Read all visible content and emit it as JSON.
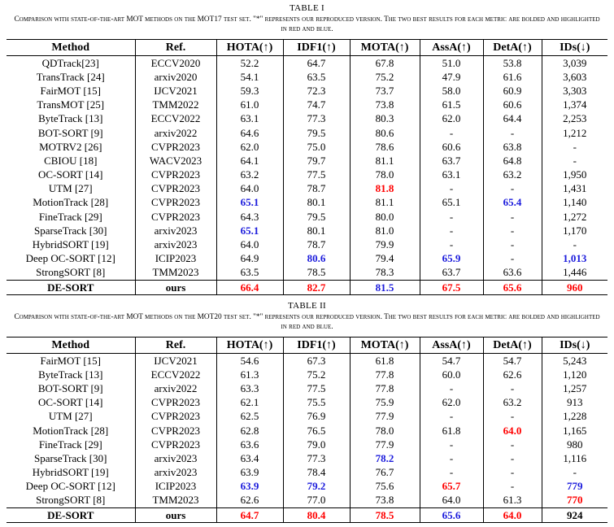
{
  "headers": [
    "Method",
    "Ref.",
    "HOTA(↑)",
    "IDF1(↑)",
    "MOTA(↑)",
    "AssA(↑)",
    "DetA(↑)",
    "IDs(↓)"
  ],
  "tables": [
    {
      "title": "TABLE I",
      "caption": "Comparison with state-of-the-art MOT methods on the MOT17 test set. \"*\" represents our reproduced version. The two best results for each metric are bolded and highlighted in red and blue.",
      "rows": [
        {
          "cells": [
            "QDTrack[23]",
            "ECCV2020",
            "52.2",
            "64.7",
            "67.8",
            "51.0",
            "53.8",
            "3,039"
          ],
          "hl": {}
        },
        {
          "cells": [
            "TransTrack [24]",
            "arxiv2020",
            "54.1",
            "63.5",
            "75.2",
            "47.9",
            "61.6",
            "3,603"
          ],
          "hl": {}
        },
        {
          "cells": [
            "FairMOT [15]",
            "IJCV2021",
            "59.3",
            "72.3",
            "73.7",
            "58.0",
            "60.9",
            "3,303"
          ],
          "hl": {}
        },
        {
          "cells": [
            "TransMOT [25]",
            "TMM2022",
            "61.0",
            "74.7",
            "73.8",
            "61.5",
            "60.6",
            "1,374"
          ],
          "hl": {}
        },
        {
          "cells": [
            "ByteTrack [13]",
            "ECCV2022",
            "63.1",
            "77.3",
            "80.3",
            "62.0",
            "64.4",
            "2,253"
          ],
          "hl": {}
        },
        {
          "cells": [
            "BOT-SORT [9]",
            "arxiv2022",
            "64.6",
            "79.5",
            "80.6",
            "-",
            "-",
            "1,212"
          ],
          "hl": {}
        },
        {
          "cells": [
            "MOTRV2 [26]",
            "CVPR2023",
            "62.0",
            "75.0",
            "78.6",
            "60.6",
            "63.8",
            "-"
          ],
          "hl": {}
        },
        {
          "cells": [
            "CBIOU [18]",
            "WACV2023",
            "64.1",
            "79.7",
            "81.1",
            "63.7",
            "64.8",
            "-"
          ],
          "hl": {}
        },
        {
          "cells": [
            "OC-SORT [14]",
            "CVPR2023",
            "63.2",
            "77.5",
            "78.0",
            "63.1",
            "63.2",
            "1,950"
          ],
          "hl": {}
        },
        {
          "cells": [
            "UTM [27]",
            "CVPR2023",
            "64.0",
            "78.7",
            "81.8",
            "-",
            "-",
            "1,431"
          ],
          "hl": {
            "4": "red"
          }
        },
        {
          "cells": [
            "MotionTrack [28]",
            "CVPR2023",
            "65.1",
            "80.1",
            "81.1",
            "65.1",
            "65.4",
            "1,140"
          ],
          "hl": {
            "2": "blue",
            "6": "blue"
          }
        },
        {
          "cells": [
            "FineTrack [29]",
            "CVPR2023",
            "64.3",
            "79.5",
            "80.0",
            "-",
            "-",
            "1,272"
          ],
          "hl": {}
        },
        {
          "cells": [
            "SparseTrack [30]",
            "arxiv2023",
            "65.1",
            "80.1",
            "81.0",
            "-",
            "-",
            "1,170"
          ],
          "hl": {
            "2": "blue"
          }
        },
        {
          "cells": [
            "HybridSORT [19]",
            "arxiv2023",
            "64.0",
            "78.7",
            "79.9",
            "-",
            "-",
            "-"
          ],
          "hl": {}
        },
        {
          "cells": [
            "Deep OC-SORT [12]",
            "ICIP2023",
            "64.9",
            "80.6",
            "79.4",
            "65.9",
            "-",
            "1,013"
          ],
          "hl": {
            "3": "blue",
            "5": "blue",
            "7": "blue"
          }
        },
        {
          "cells": [
            "StrongSORT [8]",
            "TMM2023",
            "63.5",
            "78.5",
            "78.3",
            "63.7",
            "63.6",
            "1,446"
          ],
          "hl": {}
        },
        {
          "cells": [
            "DE-SORT",
            "ours",
            "66.4",
            "82.7",
            "81.5",
            "67.5",
            "65.6",
            "960"
          ],
          "hl": {
            "2": "red",
            "3": "red",
            "4": "blue",
            "5": "red",
            "6": "red",
            "7": "red"
          },
          "bold": true
        }
      ]
    },
    {
      "title": "TABLE II",
      "caption": "Comparison with state-of-the-art MOT methods on the MOT20 test set. \"*\" represents our reproduced version. The two best results for each metric are bolded and highlighted in red and blue.",
      "rows": [
        {
          "cells": [
            "FairMOT [15]",
            "IJCV2021",
            "54.6",
            "67.3",
            "61.8",
            "54.7",
            "54.7",
            "5,243"
          ],
          "hl": {}
        },
        {
          "cells": [
            "ByteTrack [13]",
            "ECCV2022",
            "61.3",
            "75.2",
            "77.8",
            "60.0",
            "62.6",
            "1,120"
          ],
          "hl": {}
        },
        {
          "cells": [
            "BOT-SORT [9]",
            "arxiv2022",
            "63.3",
            "77.5",
            "77.8",
            "-",
            "-",
            "1,257"
          ],
          "hl": {}
        },
        {
          "cells": [
            "OC-SORT [14]",
            "CVPR2023",
            "62.1",
            "75.5",
            "75.9",
            "62.0",
            "63.2",
            "913"
          ],
          "hl": {}
        },
        {
          "cells": [
            "UTM [27]",
            "CVPR2023",
            "62.5",
            "76.9",
            "77.9",
            "-",
            "-",
            "1,228"
          ],
          "hl": {}
        },
        {
          "cells": [
            "MotionTrack [28]",
            "CVPR2023",
            "62.8",
            "76.5",
            "78.0",
            "61.8",
            "64.0",
            "1,165"
          ],
          "hl": {
            "6": "red"
          }
        },
        {
          "cells": [
            "FineTrack [29]",
            "CVPR2023",
            "63.6",
            "79.0",
            "77.9",
            "-",
            "-",
            "980"
          ],
          "hl": {}
        },
        {
          "cells": [
            "SparseTrack [30]",
            "arxiv2023",
            "63.4",
            "77.3",
            "78.2",
            "-",
            "-",
            "1,116"
          ],
          "hl": {
            "4": "blue"
          }
        },
        {
          "cells": [
            "HybridSORT [19]",
            "arxiv2023",
            "63.9",
            "78.4",
            "76.7",
            "-",
            "-",
            "-"
          ],
          "hl": {}
        },
        {
          "cells": [
            "Deep OC-SORT [12]",
            "ICIP2023",
            "63.9",
            "79.2",
            "75.6",
            "65.7",
            "-",
            "779"
          ],
          "hl": {
            "2": "blue",
            "3": "blue",
            "5": "red",
            "7": "blue"
          }
        },
        {
          "cells": [
            "StrongSORT [8]",
            "TMM2023",
            "62.6",
            "77.0",
            "73.8",
            "64.0",
            "61.3",
            "770"
          ],
          "hl": {
            "7": "red"
          }
        },
        {
          "cells": [
            "DE-SORT",
            "ours",
            "64.7",
            "80.4",
            "78.5",
            "65.6",
            "64.0",
            "924"
          ],
          "hl": {
            "2": "red",
            "3": "red",
            "4": "red",
            "5": "blue",
            "6": "red"
          },
          "bold": true
        }
      ]
    }
  ]
}
